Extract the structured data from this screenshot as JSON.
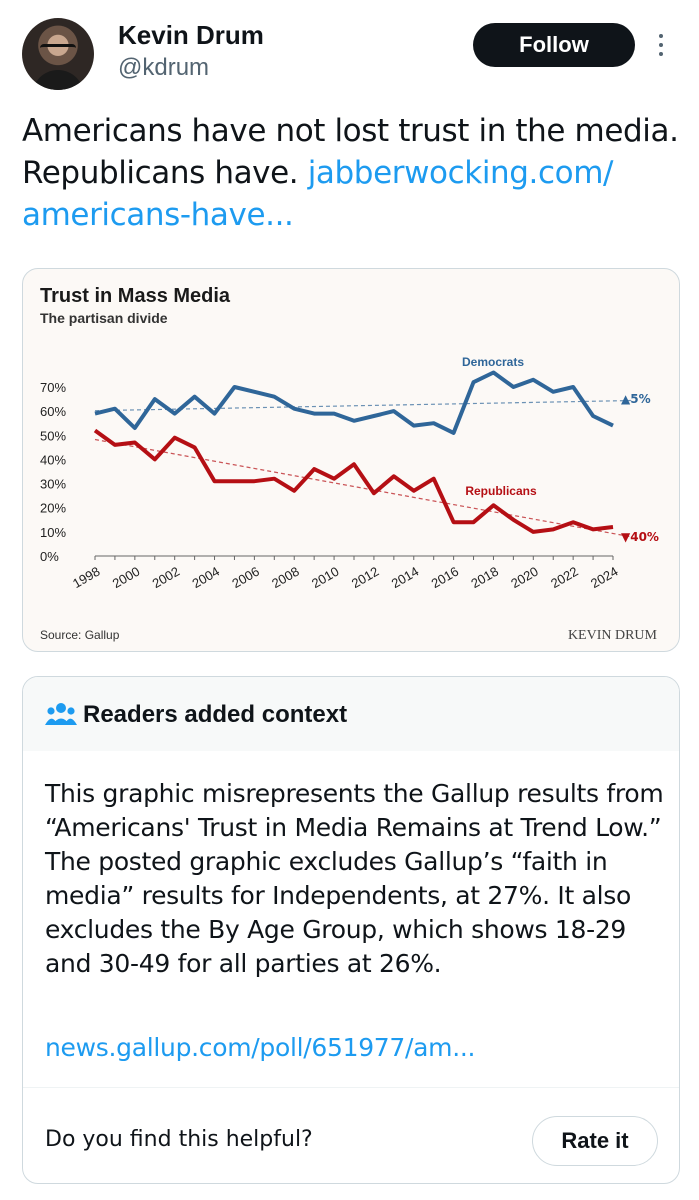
{
  "author": {
    "name": "Kevin Drum",
    "handle": "@kdrum",
    "follow_label": "Follow",
    "more_icon": "more-vertical-icon"
  },
  "tweet": {
    "text": "Americans have not lost trust in the media. Republicans have. ",
    "link_text": "jabberwocking.com/​americans-have..."
  },
  "chart_data": {
    "type": "line",
    "title": "Trust in Mass Media",
    "subtitle": "The partisan divide",
    "x": [
      1998,
      1999,
      2000,
      2001,
      2002,
      2003,
      2004,
      2005,
      2006,
      2007,
      2008,
      2009,
      2010,
      2011,
      2012,
      2013,
      2014,
      2015,
      2016,
      2017,
      2018,
      2019,
      2020,
      2021,
      2022,
      2023,
      2024
    ],
    "series": [
      {
        "name": "Democrats",
        "color": "#2f6699",
        "values": [
          59,
          61,
          53,
          65,
          59,
          66,
          59,
          70,
          68,
          66,
          61,
          59,
          59,
          56,
          58,
          60,
          54,
          55,
          51,
          72,
          76,
          70,
          73,
          68,
          70,
          58,
          54
        ],
        "change_label": "▲5%"
      },
      {
        "name": "Republicans",
        "color": "#b50f14",
        "values": [
          52,
          46,
          47,
          40,
          49,
          45,
          31,
          31,
          31,
          32,
          27,
          36,
          32,
          38,
          26,
          33,
          27,
          32,
          14,
          14,
          21,
          15,
          10,
          11,
          14,
          11,
          12
        ],
        "change_label": "▼40%"
      }
    ],
    "ylim": [
      0,
      70
    ],
    "yticks": [
      "0%",
      "10%",
      "20%",
      "30%",
      "40%",
      "50%",
      "60%",
      "70%"
    ],
    "xticks": [
      "1998",
      "2000",
      "2002",
      "2004",
      "2006",
      "2008",
      "2010",
      "2012",
      "2014",
      "2016",
      "2018",
      "2020",
      "2022",
      "2024"
    ],
    "trendlines": true,
    "source": "Source: Gallup",
    "watermark": "KEVIN DRUM"
  },
  "context_note": {
    "title": "Readers added context",
    "icon": "people-icon",
    "body": "This graphic misrepresents the Gallup results from “Americans' Trust in Media Remains at Trend Low.” The posted graphic excludes Gallup’s “faith in media” results for Independents, at 27%. It also excludes the By Age Group, which shows 18-29 and 30-49 for all parties at 26%.",
    "link_text": "news.gallup.com/poll/651977/am...",
    "helpful_question": "Do you find this helpful?",
    "rate_label": "Rate it"
  }
}
